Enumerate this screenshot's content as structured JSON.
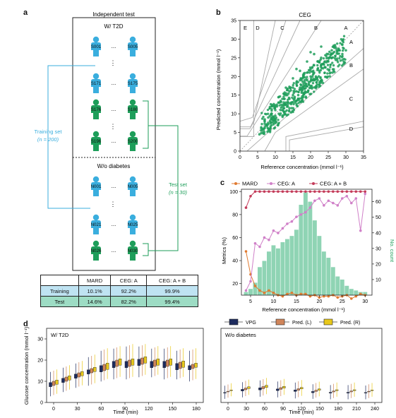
{
  "panels": {
    "a": "a",
    "b": "b",
    "c": "c",
    "d": "d"
  },
  "panel_a": {
    "box_title": "Independent test",
    "group1_title": "W/ T2D",
    "group2_title": "W/o diabetes",
    "t2d_ids": [
      "S001",
      "S005",
      "S171",
      "S175",
      "S176",
      "S180",
      "S196",
      "S200"
    ],
    "nodiab_ids": [
      "N001",
      "N005",
      "N021",
      "N025",
      "N026",
      "N030"
    ],
    "dots": "...",
    "vdots": "⋮",
    "training_label": "Training set",
    "training_n": "(n = 200)",
    "test_label": "Test set",
    "test_n": "(n = 30)",
    "colors": {
      "training": "#3aaede",
      "test": "#1e9e5a"
    }
  },
  "table": {
    "headers": [
      "",
      "MARD",
      "CEG: A",
      "CEG: A + B"
    ],
    "rows": [
      [
        "Training",
        "10.1%",
        "92.2%",
        "99.9%"
      ],
      [
        "Test",
        "14.6%",
        "82.2%",
        "99.4%"
      ]
    ]
  },
  "chart_data": [
    {
      "type": "scatter",
      "title": "CEG",
      "xlabel": "Reference concentration (mmol l⁻¹)",
      "ylabel": "Predicted concentration (mmol l⁻¹)",
      "xlim": [
        0,
        35
      ],
      "ylim": [
        0,
        35
      ],
      "xticks": [
        "0",
        "5",
        "10",
        "15",
        "20",
        "25",
        "30",
        "35"
      ],
      "yticks": [
        "0",
        "5",
        "10",
        "15",
        "20",
        "25",
        "30",
        "35"
      ],
      "zones": [
        "E",
        "D",
        "C",
        "B",
        "A",
        "A",
        "B",
        "C",
        "D"
      ],
      "point_color": "#1e9e5a",
      "points": [
        [
          6,
          4.8
        ],
        [
          6.5,
          6
        ],
        [
          7,
          6.2
        ],
        [
          7.5,
          7
        ],
        [
          8,
          7.5
        ],
        [
          8,
          9
        ],
        [
          8.5,
          8
        ],
        [
          9,
          10
        ],
        [
          9,
          8.5
        ],
        [
          9.5,
          9
        ],
        [
          10,
          11
        ],
        [
          10,
          9.5
        ],
        [
          10.5,
          12
        ],
        [
          11,
          10
        ],
        [
          11,
          13
        ],
        [
          11.5,
          11
        ],
        [
          12,
          14
        ],
        [
          12,
          12
        ],
        [
          12.5,
          11.5
        ],
        [
          13,
          15
        ],
        [
          13,
          13
        ],
        [
          13.5,
          12.5
        ],
        [
          14,
          16
        ],
        [
          14,
          14
        ],
        [
          14.5,
          13
        ],
        [
          15,
          17
        ],
        [
          15,
          15
        ],
        [
          15.5,
          14.5
        ],
        [
          16,
          18
        ],
        [
          16,
          16
        ],
        [
          16.5,
          15
        ],
        [
          17,
          19
        ],
        [
          17,
          17
        ],
        [
          17.5,
          16
        ],
        [
          18,
          20
        ],
        [
          18,
          18
        ],
        [
          18.5,
          17.5
        ],
        [
          19,
          21
        ],
        [
          19,
          19
        ],
        [
          19.5,
          18
        ],
        [
          20,
          22
        ],
        [
          20,
          20
        ],
        [
          20.5,
          19
        ],
        [
          21,
          23
        ],
        [
          21,
          21
        ],
        [
          21.5,
          20
        ],
        [
          22,
          24
        ],
        [
          22,
          22
        ],
        [
          22.5,
          21.5
        ],
        [
          23,
          25
        ],
        [
          23,
          23
        ],
        [
          24,
          24
        ],
        [
          24,
          22.5
        ],
        [
          25,
          26
        ],
        [
          25,
          24
        ],
        [
          26,
          25
        ],
        [
          26,
          27
        ],
        [
          27,
          25.5
        ],
        [
          27,
          28
        ],
        [
          28,
          27
        ],
        [
          29,
          26
        ],
        [
          29,
          28.5
        ],
        [
          30,
          27
        ],
        [
          7,
          8.5
        ],
        [
          9,
          12
        ],
        [
          11,
          14.5
        ],
        [
          13,
          17
        ],
        [
          15,
          19.5
        ],
        [
          17,
          21.5
        ],
        [
          19,
          24
        ],
        [
          21,
          26
        ],
        [
          23,
          28
        ],
        [
          12,
          9.5
        ],
        [
          14,
          11.5
        ],
        [
          16,
          13.5
        ],
        [
          18,
          15.5
        ],
        [
          20,
          17
        ],
        [
          22,
          19
        ],
        [
          24,
          21
        ],
        [
          10,
          7.5
        ],
        [
          8,
          6
        ],
        [
          15,
          10.5
        ],
        [
          5.5,
          4.5
        ],
        [
          6,
          5.5
        ],
        [
          7.8,
          5.2
        ],
        [
          20,
          26.5
        ],
        [
          16,
          22
        ]
      ]
    },
    {
      "type": "line",
      "xlabel": "Reference concentration (mmol l⁻¹)",
      "ylabel": "Metrics (%)",
      "y2label": "No. count",
      "xlim": [
        3,
        31.5
      ],
      "ylim": [
        10,
        102
      ],
      "y2lim": [
        0,
        68
      ],
      "xticks": [
        "5",
        "10",
        "15",
        "20",
        "25",
        "30"
      ],
      "yticks": [
        "20",
        "40",
        "60",
        "80",
        "100"
      ],
      "y2ticks": [
        "10",
        "20",
        "30",
        "40",
        "50",
        "60"
      ],
      "legend": [
        "MARD",
        "CEG: A",
        "CEG: A + B"
      ],
      "colors": {
        "mard": "#e07a30",
        "ceg_a": "#d080c8",
        "ceg_ab": "#c43c5a",
        "bars": "#8fd4b4"
      },
      "x": [
        4,
        5,
        6,
        7,
        8,
        9,
        10,
        11,
        12,
        13,
        14,
        15,
        16,
        17,
        18,
        19,
        20,
        21,
        22,
        23,
        24,
        25,
        26,
        27,
        28,
        29,
        30
      ],
      "series": [
        {
          "name": "MARD",
          "values": [
            48,
            28,
            18,
            14,
            12,
            14,
            12,
            10,
            9,
            11,
            12,
            10,
            11,
            11,
            9,
            10,
            8,
            9,
            9,
            10,
            8,
            9,
            10,
            7,
            9,
            11,
            10
          ]
        },
        {
          "name": "CEG: A",
          "values": [
            14,
            22,
            55,
            52,
            60,
            58,
            66,
            64,
            68,
            72,
            74,
            78,
            80,
            82,
            86,
            92,
            94,
            88,
            92,
            90,
            88,
            94,
            96,
            90,
            94,
            66,
            98
          ]
        },
        {
          "name": "CEG: A + B",
          "values": [
            86,
            96,
            100,
            100,
            100,
            100,
            100,
            100,
            100,
            100,
            100,
            100,
            100,
            100,
            100,
            100,
            100,
            100,
            100,
            100,
            100,
            100,
            100,
            100,
            100,
            100,
            100
          ]
        }
      ],
      "bars": [
        2,
        4,
        8,
        18,
        22,
        28,
        32,
        30,
        34,
        36,
        38,
        42,
        58,
        66,
        60,
        48,
        38,
        28,
        24,
        18,
        12,
        10,
        6,
        4,
        3,
        2,
        2
      ]
    },
    {
      "type": "box",
      "title": "W/ T2D",
      "xlabel": "Time (min)",
      "ylabel": "Glucose concentration (mmol l⁻¹)",
      "xticks": [
        "0",
        "30",
        "60",
        "90",
        "120",
        "150",
        "180"
      ],
      "yticks": [
        "0",
        "10",
        "20",
        "30"
      ],
      "ylim": [
        0,
        35
      ],
      "legend": [
        "VPG",
        "Pred. (L)",
        "Pred. (R)"
      ],
      "colors": {
        "vpg": "#1d2b5e",
        "predL": "#d0855a",
        "predR": "#e8c81a"
      },
      "boxes": [
        [
          6,
          8,
          10,
          12
        ],
        [
          8,
          10,
          12,
          14
        ],
        [
          10,
          12,
          14,
          16
        ],
        [
          11,
          14,
          16,
          19
        ],
        [
          13,
          15,
          18,
          22
        ],
        [
          14,
          17,
          20,
          23
        ],
        [
          14,
          17,
          20,
          24
        ],
        [
          15,
          18,
          21,
          24
        ],
        [
          15,
          17,
          20,
          23
        ],
        [
          14,
          17,
          20,
          23
        ],
        [
          14,
          16,
          19,
          22
        ],
        [
          13,
          16,
          18,
          22
        ]
      ]
    },
    {
      "type": "box",
      "title": "W/o diabetes",
      "xlabel": "Time (min)",
      "xticks": [
        "0",
        "30",
        "60",
        "90",
        "120",
        "150",
        "180",
        "210",
        "240"
      ],
      "ylim": [
        0,
        35
      ],
      "boxes": [
        [
          4.8,
          5,
          5.3,
          5.5
        ],
        [
          5.5,
          6,
          6.8,
          7.2
        ],
        [
          5.8,
          6.5,
          7.5,
          8
        ],
        [
          5.5,
          6.2,
          7,
          7.5
        ],
        [
          5,
          5.8,
          6.5,
          7
        ],
        [
          4.8,
          5.2,
          5.8,
          6.2
        ],
        [
          4.6,
          5,
          5.4,
          5.8
        ],
        [
          4.6,
          5,
          5.4,
          5.8
        ],
        [
          4.6,
          5,
          5.3,
          5.6
        ]
      ]
    }
  ]
}
